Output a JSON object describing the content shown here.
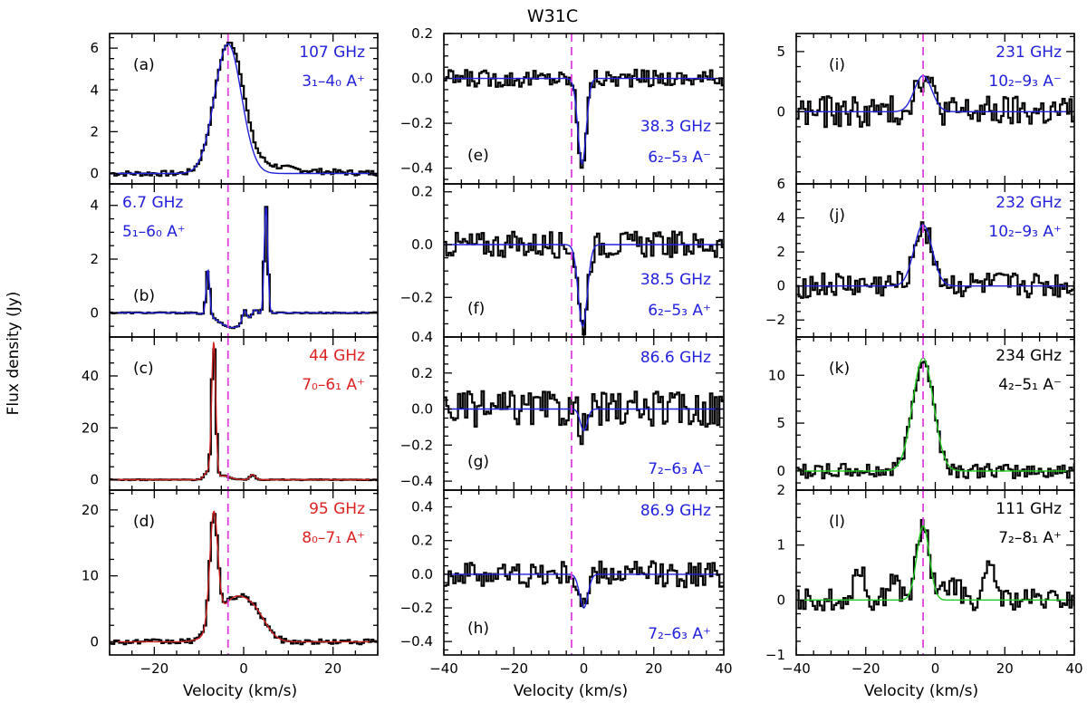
{
  "figure": {
    "title": "W31C",
    "ylabel": "Flux density (Jy)",
    "xlabel": "Velocity (km/s)",
    "vref": -3.5,
    "vref_color": "#e040e0"
  },
  "chart_data": [
    {
      "id": "a",
      "type": "line",
      "panel_label": "(a)",
      "column": 0,
      "row": 0,
      "xlim": [
        -30,
        30
      ],
      "ylim": [
        -0.5,
        6.7
      ],
      "yticks": [
        0,
        2,
        4,
        6
      ],
      "xticks": [
        -20,
        0,
        20
      ],
      "label_line1": "107 GHz",
      "label_line2": "3₁–4₀ A⁺",
      "label_color": "#2222dd",
      "label_anchor": "right",
      "series": [
        {
          "role": "observed",
          "style": "histogram",
          "color": "#000000",
          "profile": "emission",
          "center": -3.5,
          "peak": 6.2,
          "width": 3.0,
          "red_wing": 1.3,
          "noise": 0.12
        },
        {
          "role": "fit",
          "style": "smooth",
          "color": "#2222dd",
          "center": -3.5,
          "peak": 6.2,
          "width": 3.0
        }
      ]
    },
    {
      "id": "b",
      "type": "line",
      "panel_label": "(b)",
      "column": 0,
      "row": 1,
      "xlim": [
        -30,
        30
      ],
      "ylim": [
        -0.9,
        4.8
      ],
      "yticks": [
        0,
        2,
        4
      ],
      "xticks": [
        -20,
        0,
        20
      ],
      "label_line1": "6.7 GHz",
      "label_line2": "5₁–6₀ A⁺",
      "label_color": "#2222dd",
      "label_anchor": "left",
      "series": [
        {
          "role": "observed",
          "style": "histogram",
          "color": "#000000",
          "components": [
            {
              "center": -8.0,
              "peak": 1.7,
              "width": 0.4
            },
            {
              "center": 5.0,
              "peak": 4.0,
              "width": 0.4
            },
            {
              "center": 0.2,
              "peak": 0.45,
              "width": 0.5
            },
            {
              "center": 2.5,
              "peak": 0.25,
              "width": 0.6
            },
            {
              "center": -2.5,
              "peak": -0.55,
              "width": 3.0
            }
          ],
          "noise": 0.02
        },
        {
          "role": "fit",
          "style": "smooth",
          "color": "#2222dd",
          "components": [
            {
              "center": -8.0,
              "peak": 1.7,
              "width": 0.4
            },
            {
              "center": 5.0,
              "peak": 4.0,
              "width": 0.4
            },
            {
              "center": 0.2,
              "peak": 0.45,
              "width": 0.5
            },
            {
              "center": 2.5,
              "peak": 0.25,
              "width": 0.6
            },
            {
              "center": -2.5,
              "peak": -0.55,
              "width": 3.0
            }
          ]
        }
      ]
    },
    {
      "id": "c",
      "type": "line",
      "panel_label": "(c)",
      "column": 0,
      "row": 2,
      "xlim": [
        -30,
        30
      ],
      "ylim": [
        -4,
        55
      ],
      "yticks": [
        0,
        20,
        40
      ],
      "xticks": [
        -20,
        0,
        20
      ],
      "label_line1": "44 GHz",
      "label_line2": "7₀–6₁ A⁺",
      "label_color": "#dd2222",
      "label_anchor": "right",
      "series": [
        {
          "role": "observed",
          "style": "histogram",
          "color": "#000000",
          "components": [
            {
              "center": -6.7,
              "peak": 52,
              "width": 0.45
            },
            {
              "center": -8.0,
              "peak": 3,
              "width": 0.8
            },
            {
              "center": 2.0,
              "peak": 2,
              "width": 0.6
            },
            {
              "center": -4.5,
              "peak": 1.5,
              "width": 1.5
            }
          ],
          "noise": 0.15
        },
        {
          "role": "fit",
          "style": "smooth",
          "color": "#cc2222",
          "components": [
            {
              "center": -6.7,
              "peak": 52,
              "width": 0.45
            },
            {
              "center": -8.0,
              "peak": 3,
              "width": 0.8
            },
            {
              "center": 2.0,
              "peak": 2,
              "width": 0.6
            },
            {
              "center": -4.5,
              "peak": 1.5,
              "width": 1.5
            }
          ]
        }
      ]
    },
    {
      "id": "d",
      "type": "line",
      "panel_label": "(d)",
      "column": 0,
      "row": 3,
      "xlim": [
        -30,
        30
      ],
      "ylim": [
        -2,
        23
      ],
      "yticks": [
        0,
        10,
        20
      ],
      "xticks": [
        -20,
        0,
        20
      ],
      "label_line1": "95 GHz",
      "label_line2": "8₀–7₁ A⁺",
      "label_color": "#dd2222",
      "label_anchor": "right",
      "series": [
        {
          "role": "observed",
          "style": "histogram",
          "color": "#000000",
          "components": [
            {
              "center": -6.7,
              "peak": 17,
              "width": 0.9
            },
            {
              "center": -2.0,
              "peak": 6.5,
              "width": 3.6
            },
            {
              "center": 3.0,
              "peak": 2.5,
              "width": 2.5
            }
          ],
          "noise": 0.35
        },
        {
          "role": "fit",
          "style": "smooth",
          "color": "#cc2222",
          "components": [
            {
              "center": -6.7,
              "peak": 17,
              "width": 0.9
            },
            {
              "center": -2.0,
              "peak": 6.5,
              "width": 3.6
            },
            {
              "center": 3.0,
              "peak": 2.5,
              "width": 2.5
            }
          ]
        }
      ]
    },
    {
      "id": "e",
      "type": "line",
      "panel_label": "(e)",
      "column": 1,
      "row": 0,
      "xlim": [
        -40,
        40
      ],
      "ylim": [
        -0.47,
        0.2
      ],
      "yticks": [
        0.2,
        0,
        -0.2,
        -0.4
      ],
      "ytickfmt": 1,
      "xticks": [
        -40,
        -20,
        0,
        20,
        40
      ],
      "label_line1": "38.3 GHz",
      "label_line2": "6₂–5₃ A⁻",
      "label_color": "#2222dd",
      "label_anchor": "right",
      "label_pos": "bottom",
      "series": [
        {
          "role": "observed",
          "style": "histogram",
          "color": "#000000",
          "components": [
            {
              "center": -0.5,
              "peak": -0.38,
              "width": 1.2
            }
          ],
          "noise": 0.035
        },
        {
          "role": "fit",
          "style": "smooth",
          "color": "#2222dd",
          "components": [
            {
              "center": -0.5,
              "peak": -0.38,
              "width": 1.2
            }
          ]
        }
      ]
    },
    {
      "id": "f",
      "type": "line",
      "panel_label": "(f)",
      "column": 1,
      "row": 1,
      "xlim": [
        -40,
        40
      ],
      "ylim": [
        -0.35,
        0.23
      ],
      "yticks": [
        0.2,
        0,
        -0.2
      ],
      "ytickfmt": 1,
      "xticks": [
        -40,
        -20,
        0,
        20,
        40
      ],
      "label_line1": "38.5 GHz",
      "label_line2": "6₂–5₃ A⁺",
      "label_color": "#2222dd",
      "label_anchor": "right",
      "label_pos": "bottom",
      "series": [
        {
          "role": "observed",
          "style": "histogram",
          "color": "#000000",
          "components": [
            {
              "center": -0.3,
              "peak": -0.31,
              "width": 1.3
            }
          ],
          "noise": 0.045
        },
        {
          "role": "fit",
          "style": "smooth",
          "color": "#2222dd",
          "components": [
            {
              "center": -0.3,
              "peak": -0.31,
              "width": 1.3
            }
          ]
        }
      ]
    },
    {
      "id": "g",
      "type": "line",
      "panel_label": "(g)",
      "column": 1,
      "row": 2,
      "xlim": [
        -40,
        40
      ],
      "ylim": [
        -0.45,
        0.4
      ],
      "yticks": [
        0.4,
        0.2,
        0,
        -0.2,
        -0.4
      ],
      "ytickfmt": 1,
      "xticks": [
        -40,
        -20,
        0,
        20,
        40
      ],
      "label_line1": "86.6 GHz",
      "label_line2": "7₂–6₃ A⁻",
      "label_color": "#2222dd",
      "label_anchor": "right",
      "label_split": true,
      "series": [
        {
          "role": "observed",
          "style": "histogram",
          "color": "#000000",
          "components": [
            {
              "center": 0.0,
              "peak": -0.12,
              "width": 1.0
            }
          ],
          "noise": 0.09
        },
        {
          "role": "fit",
          "style": "smooth",
          "color": "#2222dd",
          "components": [
            {
              "center": 0.0,
              "peak": -0.12,
              "width": 1.0
            }
          ]
        }
      ]
    },
    {
      "id": "h",
      "type": "line",
      "panel_label": "(h)",
      "column": 1,
      "row": 3,
      "xlim": [
        -40,
        40
      ],
      "ylim": [
        -0.48,
        0.5
      ],
      "yticks": [
        0.4,
        0.2,
        0,
        -0.2,
        -0.4
      ],
      "ytickfmt": 1,
      "xticks": [
        -40,
        -20,
        0,
        20,
        40
      ],
      "label_line1": "86.9 GHz",
      "label_line2": "7₂–6₃ A⁺",
      "label_color": "#2222dd",
      "label_anchor": "right",
      "label_split": true,
      "series": [
        {
          "role": "observed",
          "style": "histogram",
          "color": "#000000",
          "components": [
            {
              "center": 0.0,
              "peak": -0.2,
              "width": 1.2
            }
          ],
          "noise": 0.07
        },
        {
          "role": "fit",
          "style": "smooth",
          "color": "#2222dd",
          "components": [
            {
              "center": 0.0,
              "peak": -0.2,
              "width": 1.2
            }
          ]
        }
      ]
    },
    {
      "id": "i",
      "type": "line",
      "panel_label": "(i)",
      "column": 2,
      "row": 0,
      "xlim": [
        -40,
        40
      ],
      "ylim": [
        -6,
        6.5
      ],
      "yticks": [
        5,
        0
      ],
      "xticks": [
        -40,
        -20,
        0,
        20,
        40
      ],
      "label_line1": "231 GHz",
      "label_line2": "10₂–9₃ A⁻",
      "label_color": "#2222dd",
      "label_anchor": "right",
      "series": [
        {
          "role": "observed",
          "style": "histogram",
          "color": "#000000",
          "components": [
            {
              "center": -3.5,
              "peak": 3.0,
              "width": 2.5
            }
          ],
          "noise": 1.2
        },
        {
          "role": "fit",
          "style": "smooth",
          "color": "#2222dd",
          "components": [
            {
              "center": -3.5,
              "peak": 3.0,
              "width": 2.5
            }
          ]
        }
      ]
    },
    {
      "id": "j",
      "type": "line",
      "panel_label": "(j)",
      "column": 2,
      "row": 1,
      "xlim": [
        -40,
        40
      ],
      "ylim": [
        -3,
        6
      ],
      "yticks": [
        6,
        4,
        2,
        0,
        -2
      ],
      "xticks": [
        -40,
        -20,
        0,
        20,
        40
      ],
      "label_line1": "232 GHz",
      "label_line2": "10₂–9₃ A⁺",
      "label_color": "#2222dd",
      "label_anchor": "right",
      "series": [
        {
          "role": "observed",
          "style": "histogram",
          "color": "#000000",
          "components": [
            {
              "center": -3.5,
              "peak": 3.6,
              "width": 2.6
            }
          ],
          "noise": 0.7
        },
        {
          "role": "fit",
          "style": "smooth",
          "color": "#2222dd",
          "components": [
            {
              "center": -3.5,
              "peak": 3.6,
              "width": 2.6
            }
          ]
        }
      ]
    },
    {
      "id": "k",
      "type": "line",
      "panel_label": "(k)",
      "column": 2,
      "row": 2,
      "xlim": [
        -40,
        40
      ],
      "ylim": [
        -2,
        14
      ],
      "yticks": [
        10,
        5,
        0
      ],
      "xticks": [
        -40,
        -20,
        0,
        20,
        40
      ],
      "label_line1": "234 GHz",
      "label_line2": "4₂–5₁ A⁻",
      "label_color": "#000000",
      "label_anchor": "right",
      "series": [
        {
          "role": "observed",
          "style": "histogram",
          "color": "#000000",
          "components": [
            {
              "center": -3.5,
              "peak": 11.8,
              "width": 3.0
            }
          ],
          "noise": 0.7
        },
        {
          "role": "fit",
          "style": "smooth",
          "color": "#22cc22",
          "components": [
            {
              "center": -3.5,
              "peak": 11.8,
              "width": 3.0
            }
          ]
        }
      ]
    },
    {
      "id": "l",
      "type": "line",
      "panel_label": "(l)",
      "column": 2,
      "row": 3,
      "xlim": [
        -40,
        40
      ],
      "ylim": [
        -1,
        2
      ],
      "yticks": [
        2,
        1,
        0,
        -1
      ],
      "xticks": [
        -40,
        -20,
        0,
        20,
        40
      ],
      "label_line1": "111 GHz",
      "label_line2": "7₂–8₁ A⁺",
      "label_color": "#000000",
      "label_anchor": "right",
      "series": [
        {
          "role": "observed",
          "style": "histogram",
          "color": "#000000",
          "components": [
            {
              "center": -3.5,
              "peak": 1.35,
              "width": 1.8
            },
            {
              "center": -22,
              "peak": 0.6,
              "width": 1.5
            },
            {
              "center": -12,
              "peak": 0.4,
              "width": 1.5
            },
            {
              "center": 16,
              "peak": 0.6,
              "width": 1.5
            },
            {
              "center": 5,
              "peak": 0.3,
              "width": 2
            }
          ],
          "noise": 0.18
        },
        {
          "role": "fit",
          "style": "smooth",
          "color": "#22cc22",
          "components": [
            {
              "center": -3.5,
              "peak": 1.35,
              "width": 1.8
            }
          ]
        }
      ]
    }
  ]
}
